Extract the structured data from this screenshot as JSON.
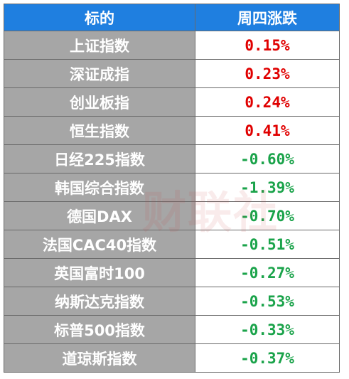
{
  "table": {
    "headers": [
      "标的",
      "周四涨跌"
    ],
    "rows": [
      {
        "name": "上证指数",
        "change": "0.15%",
        "direction": "up"
      },
      {
        "name": "深证成指",
        "change": "0.23%",
        "direction": "up"
      },
      {
        "name": "创业板指",
        "change": "0.24%",
        "direction": "up"
      },
      {
        "name": "恒生指数",
        "change": "0.41%",
        "direction": "up"
      },
      {
        "name": "日经225指数",
        "change": "-0.60%",
        "direction": "down"
      },
      {
        "name": "韩国综合指数",
        "change": "-1.39%",
        "direction": "down"
      },
      {
        "name": "德国DAX",
        "change": "-0.70%",
        "direction": "down"
      },
      {
        "name": "法国CAC40指数",
        "change": "-0.51%",
        "direction": "down"
      },
      {
        "name": "英国富时100",
        "change": "-0.27%",
        "direction": "down"
      },
      {
        "name": "纳斯达克指数",
        "change": "-0.53%",
        "direction": "down"
      },
      {
        "name": "标普500指数",
        "change": "-0.33%",
        "direction": "down"
      },
      {
        "name": "道琼斯指数",
        "change": "-0.37%",
        "direction": "down"
      }
    ]
  },
  "watermark": "财联社",
  "colors": {
    "header_bg": "#1f7fe0",
    "name_bg": "#a6a6a6",
    "up": "#e00000",
    "down": "#1aa34a"
  }
}
